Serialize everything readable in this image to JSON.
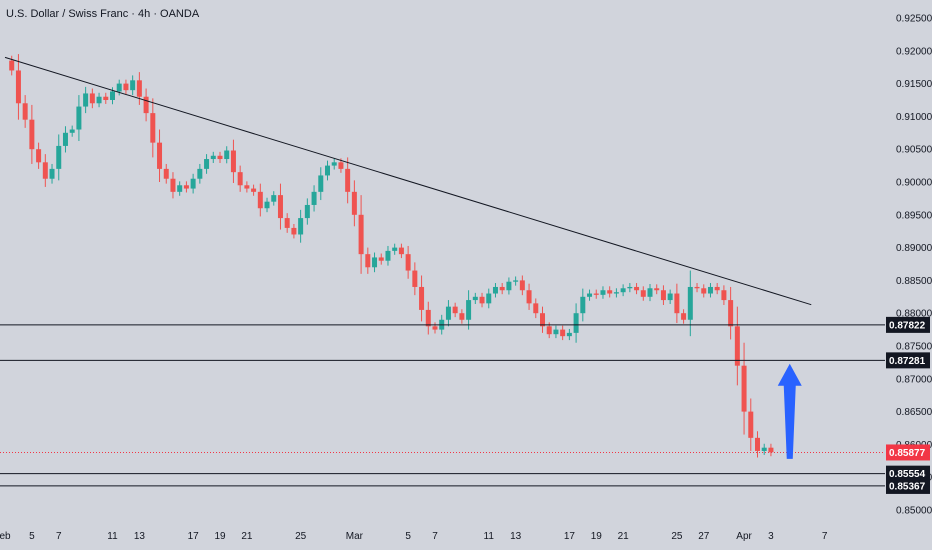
{
  "header": {
    "title": "U.S. Dollar / Swiss Franc · 4h · OANDA"
  },
  "colors": {
    "background": "#d1d4dc",
    "up": "#26a69a",
    "down": "#ef5350",
    "line": "#131722",
    "current_price": "#f23645",
    "arrow": "#2962ff"
  },
  "chart_data": {
    "type": "candlestick",
    "title": "U.S. Dollar / Swiss Franc · 4h · OANDA",
    "xlabel": "",
    "ylabel": "",
    "ylim": [
      0.85,
      0.925
    ],
    "y_ticks": [
      "0.92500",
      "0.92000",
      "0.91500",
      "0.91000",
      "0.90500",
      "0.90000",
      "0.89500",
      "0.89000",
      "0.88500",
      "0.88000",
      "0.87500",
      "0.87000",
      "0.86500",
      "0.86000",
      "0.85500",
      "0.85000"
    ],
    "x_ticks": [
      {
        "label": "eb",
        "day": 3
      },
      {
        "label": "5",
        "day": 5
      },
      {
        "label": "7",
        "day": 7
      },
      {
        "label": "11",
        "day": 11
      },
      {
        "label": "13",
        "day": 13
      },
      {
        "label": "17",
        "day": 17
      },
      {
        "label": "19",
        "day": 19
      },
      {
        "label": "21",
        "day": 21
      },
      {
        "label": "25",
        "day": 25
      },
      {
        "label": "Mar",
        "day": 29
      },
      {
        "label": "5",
        "day": 33
      },
      {
        "label": "7",
        "day": 35
      },
      {
        "label": "11",
        "day": 39
      },
      {
        "label": "13",
        "day": 41
      },
      {
        "label": "17",
        "day": 45
      },
      {
        "label": "19",
        "day": 47
      },
      {
        "label": "21",
        "day": 49
      },
      {
        "label": "25",
        "day": 53
      },
      {
        "label": "27",
        "day": 55
      },
      {
        "label": "Apr",
        "day": 58
      },
      {
        "label": "3",
        "day": 60
      },
      {
        "label": "7",
        "day": 64
      }
    ],
    "x_range": [
      3,
      67
    ],
    "series": [
      {
        "name": "USDCHF",
        "points": [
          [
            3.0,
            0.9185
          ],
          [
            3.5,
            0.917
          ],
          [
            4.0,
            0.912
          ],
          [
            4.5,
            0.9095
          ],
          [
            5.0,
            0.905
          ],
          [
            5.5,
            0.903
          ],
          [
            6.0,
            0.9005
          ],
          [
            6.5,
            0.902
          ],
          [
            7.0,
            0.9055
          ],
          [
            7.5,
            0.9075
          ],
          [
            8.0,
            0.908
          ],
          [
            8.5,
            0.9115
          ],
          [
            9.0,
            0.9135
          ],
          [
            9.5,
            0.912
          ],
          [
            10.0,
            0.913
          ],
          [
            10.5,
            0.9125
          ],
          [
            11.0,
            0.9138
          ],
          [
            11.5,
            0.915
          ],
          [
            12.0,
            0.914
          ],
          [
            12.5,
            0.9155
          ],
          [
            13.0,
            0.913
          ],
          [
            13.5,
            0.9105
          ],
          [
            14.0,
            0.906
          ],
          [
            14.5,
            0.902
          ],
          [
            15.0,
            0.9005
          ],
          [
            15.5,
            0.8985
          ],
          [
            16.0,
            0.8995
          ],
          [
            16.5,
            0.899
          ],
          [
            17.0,
            0.9005
          ],
          [
            17.5,
            0.902
          ],
          [
            18.0,
            0.9035
          ],
          [
            18.5,
            0.904
          ],
          [
            19.0,
            0.9035
          ],
          [
            19.5,
            0.9048
          ],
          [
            20.0,
            0.9015
          ],
          [
            20.5,
            0.8995
          ],
          [
            21.0,
            0.899
          ],
          [
            21.5,
            0.8985
          ],
          [
            22.0,
            0.896
          ],
          [
            22.5,
            0.897
          ],
          [
            23.0,
            0.898
          ],
          [
            23.5,
            0.8945
          ],
          [
            24.0,
            0.893
          ],
          [
            24.5,
            0.892
          ],
          [
            25.0,
            0.8945
          ],
          [
            25.5,
            0.8965
          ],
          [
            26.0,
            0.8985
          ],
          [
            26.5,
            0.901
          ],
          [
            27.0,
            0.9025
          ],
          [
            27.5,
            0.903
          ],
          [
            28.0,
            0.902
          ],
          [
            28.5,
            0.8985
          ],
          [
            29.0,
            0.895
          ],
          [
            29.5,
            0.889
          ],
          [
            30.0,
            0.887
          ],
          [
            30.5,
            0.8885
          ],
          [
            31.0,
            0.888
          ],
          [
            31.5,
            0.8895
          ],
          [
            32.0,
            0.89
          ],
          [
            32.5,
            0.889
          ],
          [
            33.0,
            0.8865
          ],
          [
            33.5,
            0.884
          ],
          [
            34.0,
            0.8805
          ],
          [
            34.5,
            0.878
          ],
          [
            35.0,
            0.8775
          ],
          [
            35.5,
            0.879
          ],
          [
            36.0,
            0.881
          ],
          [
            36.5,
            0.88
          ],
          [
            37.0,
            0.879
          ],
          [
            37.5,
            0.882
          ],
          [
            38.0,
            0.8825
          ],
          [
            38.5,
            0.8815
          ],
          [
            39.0,
            0.883
          ],
          [
            39.5,
            0.884
          ],
          [
            40.0,
            0.8835
          ],
          [
            40.5,
            0.8848
          ],
          [
            41.0,
            0.885
          ],
          [
            41.5,
            0.8835
          ],
          [
            42.0,
            0.8815
          ],
          [
            42.5,
            0.88
          ],
          [
            43.0,
            0.878
          ],
          [
            43.5,
            0.8768
          ],
          [
            44.0,
            0.8775
          ],
          [
            44.5,
            0.8765
          ],
          [
            45.0,
            0.877
          ],
          [
            45.5,
            0.88
          ],
          [
            46.0,
            0.8825
          ],
          [
            46.5,
            0.883
          ],
          [
            47.0,
            0.8828
          ],
          [
            47.5,
            0.8835
          ],
          [
            48.0,
            0.883
          ],
          [
            48.5,
            0.8832
          ],
          [
            49.0,
            0.8838
          ],
          [
            49.5,
            0.884
          ],
          [
            50.0,
            0.8835
          ],
          [
            50.5,
            0.8825
          ],
          [
            51.0,
            0.8838
          ],
          [
            51.5,
            0.8835
          ],
          [
            52.0,
            0.882
          ],
          [
            52.5,
            0.883
          ],
          [
            53.0,
            0.88
          ],
          [
            53.5,
            0.879
          ],
          [
            54.0,
            0.884
          ],
          [
            54.5,
            0.8838
          ],
          [
            55.0,
            0.883
          ],
          [
            55.5,
            0.884
          ],
          [
            56.0,
            0.8835
          ],
          [
            56.5,
            0.882
          ],
          [
            57.0,
            0.878
          ],
          [
            57.5,
            0.872
          ],
          [
            58.0,
            0.865
          ],
          [
            58.5,
            0.861
          ],
          [
            59.0,
            0.859
          ],
          [
            59.5,
            0.8595
          ],
          [
            60.0,
            0.8588
          ]
        ]
      }
    ],
    "trendline": [
      [
        3,
        0.919
      ],
      [
        63,
        0.8813
      ]
    ],
    "horizontal_levels": [
      "0.87822",
      "0.87281",
      "0.85554",
      "0.85367"
    ],
    "current_price": "0.85877",
    "annotations": [
      {
        "type": "arrow",
        "direction": "up",
        "from": [
          61.4,
          0.8578
        ],
        "to": [
          61.4,
          0.8723
        ]
      }
    ]
  }
}
